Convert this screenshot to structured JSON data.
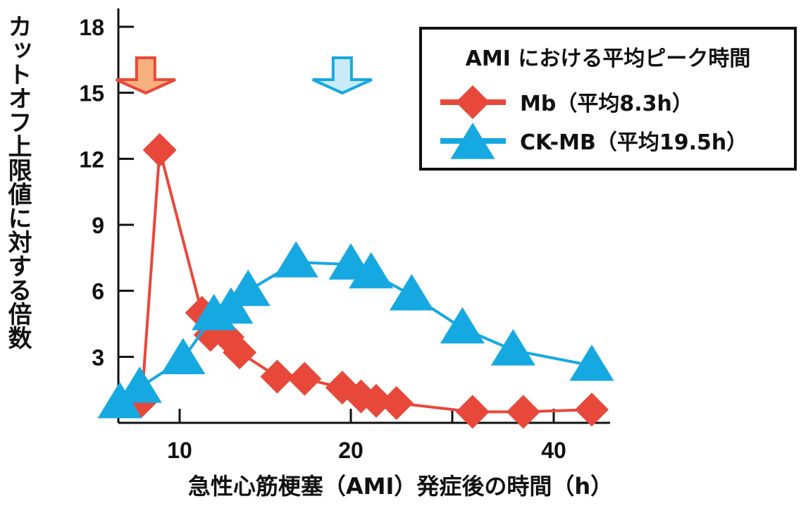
{
  "chart_data": {
    "type": "line",
    "title": "",
    "xlabel": "急性心筋梗塞（AMI）発症後の時間（h）",
    "ylabel": "カットオフ上限値に対する倍数",
    "x_ticks": [
      10,
      20,
      40
    ],
    "y_ticks": [
      3,
      6,
      9,
      12,
      15,
      18
    ],
    "ylim": [
      0,
      18
    ],
    "legend": {
      "title": "AMI における平均ピーク時間",
      "position": "top-right",
      "entries": [
        "Mb（平均8.3h）",
        "CK-MB（平均19.5h）"
      ]
    },
    "series": [
      {
        "name": "Mb（平均8.3h）",
        "color": "#e8483a",
        "marker": "diamond",
        "points": [
          {
            "x": 8.1,
            "y": 1.0
          },
          {
            "x": 9.0,
            "y": 12.4
          },
          {
            "x": 11.3,
            "y": 5.0
          },
          {
            "x": 11.8,
            "y": 4.0
          },
          {
            "x": 12.8,
            "y": 3.9
          },
          {
            "x": 13.5,
            "y": 3.2
          },
          {
            "x": 15.7,
            "y": 2.1
          },
          {
            "x": 17.3,
            "y": 2.0
          },
          {
            "x": 19.5,
            "y": 1.6
          },
          {
            "x": 21.0,
            "y": 1.2
          },
          {
            "x": 22.5,
            "y": 1.0
          },
          {
            "x": 24.5,
            "y": 0.9
          },
          {
            "x": 32.0,
            "y": 0.5
          },
          {
            "x": 37.0,
            "y": 0.5
          },
          {
            "x": 43.0,
            "y": 0.6
          }
        ]
      },
      {
        "name": "CK-MB（平均19.5h）",
        "color": "#16a9e1",
        "marker": "triangle",
        "points": [
          {
            "x": 7.0,
            "y": 0.9
          },
          {
            "x": 8.0,
            "y": 1.6
          },
          {
            "x": 10.2,
            "y": 2.9
          },
          {
            "x": 12.0,
            "y": 4.9
          },
          {
            "x": 13.0,
            "y": 5.2
          },
          {
            "x": 14.0,
            "y": 6.0
          },
          {
            "x": 16.8,
            "y": 7.3
          },
          {
            "x": 20.0,
            "y": 7.2
          },
          {
            "x": 22.0,
            "y": 6.8
          },
          {
            "x": 26.0,
            "y": 5.8
          },
          {
            "x": 31.0,
            "y": 4.3
          },
          {
            "x": 36.0,
            "y": 3.3
          },
          {
            "x": 43.0,
            "y": 2.6
          }
        ]
      }
    ],
    "peak_arrows": [
      {
        "series": "Mb（平均8.3h）",
        "x": 8.3,
        "fill": "#f7b07e",
        "stroke": "#e8483a"
      },
      {
        "series": "CK-MB（平均19.5h）",
        "x": 19.5,
        "fill": "#c9ebf8",
        "stroke": "#16a9e1"
      }
    ]
  }
}
